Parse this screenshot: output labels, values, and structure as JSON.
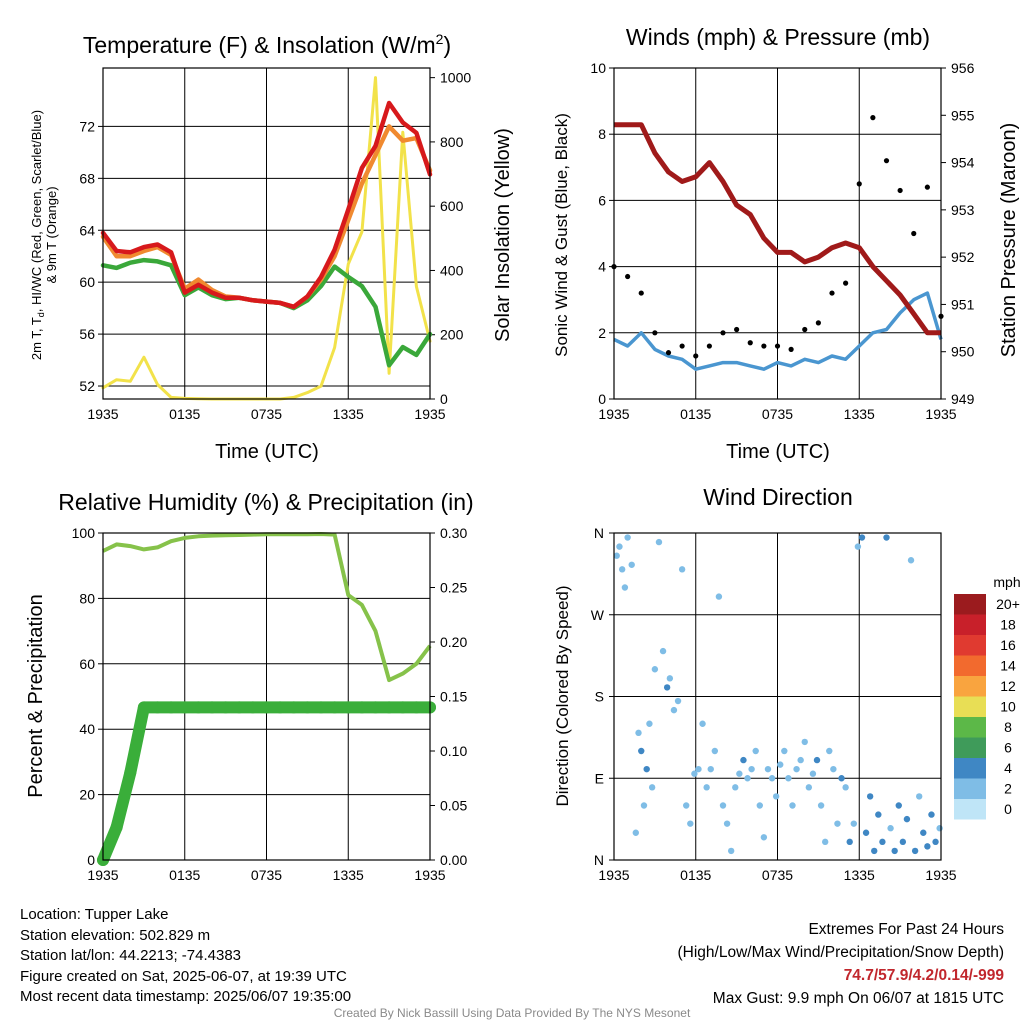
{
  "titles": {
    "temp": "Temperature (F) & Insolation (W/m",
    "temp_sup": "2",
    "temp_close": ")",
    "wind": "Winds (mph) & Pressure (mb)",
    "rh": "Relative Humidity (%) & Precipitation (in)",
    "dir": "Wind Direction"
  },
  "axis_labels": {
    "temp_y_line1": "2m T, T",
    "temp_y_sub": "d",
    "temp_y_line1_rest": ", HI/WC (Red, Green, Scarlet/Blue)",
    "temp_y_line2": "& 9m T (Orange)",
    "temp_y2": "Solar Insolation (Yellow)",
    "wind_y": "Sonic Wind & Gust (Blue, Black)",
    "wind_y2": "Station Pressure (Maroon)",
    "rh_y": "Percent & Precipitation",
    "dir_y": "Direction (Colored By Speed)",
    "x": "Time (UTC)"
  },
  "x_ticks": [
    "1935",
    "0135",
    "0735",
    "1335",
    "1935"
  ],
  "colors": {
    "temp": "#d7191c",
    "nine_m": "#f08a30",
    "dewpoint": "#3aa83a",
    "solar": "#f2e24a",
    "wind": "#4a96d0",
    "gust": "#000000",
    "pressure": "#a01a1a",
    "rh": "#86c24a",
    "precip": "#3aae3a"
  },
  "legend": {
    "title": "mph",
    "labels": [
      "20+",
      "18",
      "16",
      "14",
      "12",
      "10",
      "8",
      "6",
      "4",
      "2",
      "0"
    ],
    "colors": [
      "#9b1b1e",
      "#c8202a",
      "#e03a30",
      "#f26a2e",
      "#f9a43f",
      "#e8de55",
      "#5cb848",
      "#3f9b5a",
      "#3f87c4",
      "#7fbde6",
      "#bfe5f7"
    ]
  },
  "info_left": [
    "Location: Tupper Lake",
    "Station elevation: 502.829 m",
    "Station lat/lon: 44.2213; -74.4383",
    "Figure created on Sat, 2025-06-07, at 19:39 UTC",
    "Most recent data timestamp: 2025/06/07 19:35:00"
  ],
  "info_right": {
    "line1": "Extremes For Past 24 Hours",
    "line2": "(High/Low/Max Wind/Precipitation/Snow Depth)",
    "extremes": "74.7/57.9/4.2/0.14/-999",
    "gust": "Max Gust: 9.9 mph On 06/07 at 1815 UTC"
  },
  "credit": "Created By Nick Bassill Using Data Provided By The NYS Mesonet",
  "chart_data": [
    {
      "id": "temperature",
      "type": "line",
      "title": "Temperature (F) & Insolation (W/m2)",
      "xlabel": "Time (UTC)",
      "ylabel": "2m T, Td, HI/WC (Red, Green, Scarlet/Blue) & 9m T (Orange)",
      "y2label": "Solar Insolation (Yellow)",
      "x_hours": [
        0,
        1,
        2,
        3,
        4,
        5,
        6,
        7,
        8,
        9,
        10,
        11,
        12,
        13,
        14,
        15,
        16,
        17,
        18,
        19,
        20,
        21,
        22,
        23,
        24
      ],
      "ylim": [
        51,
        76.5
      ],
      "yticks": [
        52,
        56,
        60,
        64,
        68,
        72
      ],
      "y2lim": [
        0,
        1030
      ],
      "y2ticks": [
        0,
        200,
        400,
        600,
        800,
        1000
      ],
      "series": [
        {
          "name": "2m T",
          "axis": "left",
          "color": "#d7191c",
          "values": [
            63.8,
            62.4,
            62.3,
            62.7,
            62.9,
            62.3,
            59.2,
            59.8,
            59.2,
            58.8,
            58.8,
            58.6,
            58.5,
            58.4,
            58.1,
            58.9,
            60.4,
            62.5,
            65.6,
            68.8,
            70.5,
            73.8,
            72.3,
            71.5,
            68.3
          ]
        },
        {
          "name": "9m T",
          "axis": "left",
          "color": "#f08a30",
          "values": [
            63.5,
            62.0,
            62.0,
            62.4,
            62.7,
            62.1,
            59.5,
            60.2,
            59.4,
            58.9,
            58.8,
            58.6,
            58.5,
            58.4,
            58.1,
            58.9,
            60.2,
            62.0,
            64.8,
            67.6,
            69.8,
            72.0,
            70.9,
            71.1,
            68.6
          ]
        },
        {
          "name": "Td",
          "axis": "left",
          "color": "#3aa83a",
          "values": [
            61.3,
            61.1,
            61.5,
            61.7,
            61.6,
            61.3,
            59.0,
            59.6,
            59.0,
            58.7,
            58.8,
            58.6,
            58.5,
            58.4,
            58.0,
            58.6,
            59.7,
            61.2,
            60.4,
            59.7,
            58.1,
            53.6,
            55.0,
            54.4,
            56.0
          ]
        },
        {
          "name": "Solar",
          "axis": "right",
          "color": "#f2e24a",
          "values": [
            35,
            60,
            55,
            130,
            45,
            5,
            2,
            1,
            0,
            0,
            0,
            0,
            0,
            0,
            5,
            20,
            40,
            160,
            420,
            520,
            1000,
            80,
            830,
            350,
            180
          ]
        }
      ]
    },
    {
      "id": "winds",
      "type": "line",
      "title": "Winds (mph) & Pressure (mb)",
      "xlabel": "Time (UTC)",
      "ylabel": "Sonic Wind & Gust (Blue, Black)",
      "y2label": "Station Pressure (Maroon)",
      "x_hours": [
        0,
        1,
        2,
        3,
        4,
        5,
        6,
        7,
        8,
        9,
        10,
        11,
        12,
        13,
        14,
        15,
        16,
        17,
        18,
        19,
        20,
        21,
        22,
        23,
        24
      ],
      "ylim": [
        0,
        10
      ],
      "yticks": [
        0,
        2,
        4,
        6,
        8,
        10
      ],
      "y2lim": [
        949,
        956
      ],
      "y2ticks": [
        949,
        950,
        951,
        952,
        953,
        954,
        955,
        956
      ],
      "series": [
        {
          "name": "Sonic Wind",
          "axis": "left",
          "color": "#4a96d0",
          "values": [
            1.8,
            1.6,
            2.0,
            1.5,
            1.3,
            1.2,
            0.9,
            1.0,
            1.1,
            1.1,
            1.0,
            0.9,
            1.1,
            1.0,
            1.2,
            1.1,
            1.3,
            1.2,
            1.6,
            2.0,
            2.1,
            2.6,
            3.0,
            3.2,
            1.8
          ]
        },
        {
          "name": "Gust",
          "axis": "left",
          "color": "#000000",
          "values": [
            4.0,
            3.7,
            3.2,
            2.0,
            1.4,
            1.6,
            1.3,
            1.6,
            2.0,
            2.1,
            1.7,
            1.6,
            1.6,
            1.5,
            2.1,
            2.3,
            3.2,
            3.5,
            6.5,
            8.5,
            7.2,
            6.3,
            5.0,
            6.4,
            2.5
          ]
        },
        {
          "name": "Station Pressure",
          "axis": "right",
          "color": "#a01a1a",
          "values": [
            954.8,
            954.8,
            954.8,
            954.2,
            953.8,
            953.6,
            953.7,
            954.0,
            953.6,
            953.1,
            952.9,
            952.4,
            952.1,
            952.1,
            951.9,
            952.0,
            952.2,
            952.3,
            952.2,
            951.8,
            951.5,
            951.2,
            950.8,
            950.4,
            950.4
          ]
        }
      ]
    },
    {
      "id": "humidity",
      "type": "line",
      "title": "Relative Humidity (%) & Precipitation (in)",
      "ylabel": "Percent & Precipitation",
      "x_hours": [
        0,
        1,
        2,
        3,
        4,
        5,
        6,
        7,
        8,
        9,
        10,
        11,
        12,
        13,
        14,
        15,
        16,
        17,
        18,
        19,
        20,
        21,
        22,
        23,
        24
      ],
      "ylim": [
        0,
        100
      ],
      "yticks": [
        0,
        20,
        40,
        60,
        80,
        100
      ],
      "y2lim": [
        0,
        0.3
      ],
      "y2ticks": [
        0.0,
        0.05,
        0.1,
        0.15,
        0.2,
        0.25,
        0.3
      ],
      "series": [
        {
          "name": "Relative Humidity",
          "axis": "left",
          "color": "#86c24a",
          "values": [
            94.5,
            96.5,
            96.0,
            95.0,
            95.6,
            97.5,
            98.5,
            99.0,
            99.2,
            99.3,
            99.4,
            99.5,
            99.6,
            99.6,
            99.6,
            99.6,
            99.7,
            99.5,
            81.0,
            78.0,
            70.0,
            55.0,
            57.0,
            60.0,
            65.5
          ]
        },
        {
          "name": "Precipitation",
          "axis": "right",
          "color": "#3aae3a",
          "values": [
            0.0,
            0.03,
            0.08,
            0.14,
            0.14,
            0.14,
            0.14,
            0.14,
            0.14,
            0.14,
            0.14,
            0.14,
            0.14,
            0.14,
            0.14,
            0.14,
            0.14,
            0.14,
            0.14,
            0.14,
            0.14,
            0.14,
            0.14,
            0.14,
            0.14
          ]
        }
      ]
    },
    {
      "id": "direction",
      "type": "scatter",
      "title": "Wind Direction",
      "ylabel": "Direction (Colored By Speed)",
      "yticks": [
        "N",
        "E",
        "S",
        "W",
        "N"
      ],
      "ylim_deg": [
        0,
        360
      ],
      "points": [
        [
          0.2,
          335,
          2
        ],
        [
          0.4,
          345,
          2
        ],
        [
          0.6,
          320,
          1
        ],
        [
          0.8,
          300,
          2
        ],
        [
          1.0,
          355,
          1
        ],
        [
          1.3,
          325,
          2
        ],
        [
          1.6,
          30,
          1
        ],
        [
          1.8,
          140,
          2
        ],
        [
          2.0,
          120,
          3
        ],
        [
          2.2,
          60,
          2
        ],
        [
          2.4,
          100,
          3
        ],
        [
          2.6,
          150,
          2
        ],
        [
          2.8,
          80,
          1
        ],
        [
          3.0,
          210,
          1
        ],
        [
          3.3,
          350,
          2
        ],
        [
          3.6,
          230,
          2
        ],
        [
          3.9,
          190,
          3
        ],
        [
          4.1,
          200,
          2
        ],
        [
          4.4,
          165,
          1
        ],
        [
          4.7,
          175,
          1
        ],
        [
          5.0,
          320,
          1
        ],
        [
          5.3,
          60,
          1
        ],
        [
          5.6,
          40,
          2
        ],
        [
          5.9,
          95,
          1
        ],
        [
          6.2,
          100,
          2
        ],
        [
          6.5,
          150,
          1
        ],
        [
          6.8,
          80,
          2
        ],
        [
          7.1,
          100,
          1
        ],
        [
          7.4,
          120,
          2
        ],
        [
          7.7,
          290,
          1
        ],
        [
          8.0,
          60,
          1
        ],
        [
          8.3,
          40,
          2
        ],
        [
          8.6,
          10,
          1
        ],
        [
          8.9,
          80,
          1
        ],
        [
          9.2,
          95,
          2
        ],
        [
          9.5,
          110,
          3
        ],
        [
          9.8,
          90,
          1
        ],
        [
          10.1,
          100,
          2
        ],
        [
          10.4,
          120,
          1
        ],
        [
          10.7,
          60,
          1
        ],
        [
          11.0,
          25,
          2
        ],
        [
          11.3,
          100,
          1
        ],
        [
          11.6,
          90,
          2
        ],
        [
          11.9,
          70,
          2
        ],
        [
          12.2,
          105,
          1
        ],
        [
          12.5,
          120,
          2
        ],
        [
          12.8,
          90,
          1
        ],
        [
          13.1,
          60,
          1
        ],
        [
          13.4,
          100,
          2
        ],
        [
          13.7,
          110,
          1
        ],
        [
          14.0,
          130,
          1
        ],
        [
          14.3,
          80,
          1
        ],
        [
          14.6,
          95,
          2
        ],
        [
          14.9,
          110,
          3
        ],
        [
          15.2,
          60,
          1
        ],
        [
          15.5,
          20,
          2
        ],
        [
          15.8,
          120,
          2
        ],
        [
          16.1,
          100,
          1
        ],
        [
          16.4,
          40,
          2
        ],
        [
          16.7,
          90,
          3
        ],
        [
          17.0,
          80,
          2
        ],
        [
          17.3,
          20,
          3
        ],
        [
          17.6,
          40,
          2
        ],
        [
          17.9,
          345,
          2
        ],
        [
          18.2,
          355,
          3
        ],
        [
          18.5,
          30,
          4
        ],
        [
          18.8,
          70,
          4
        ],
        [
          19.1,
          10,
          3
        ],
        [
          19.4,
          50,
          3
        ],
        [
          19.7,
          20,
          4
        ],
        [
          20.0,
          355,
          3
        ],
        [
          20.3,
          35,
          2
        ],
        [
          20.6,
          10,
          3
        ],
        [
          20.9,
          60,
          3
        ],
        [
          21.2,
          20,
          4
        ],
        [
          21.5,
          45,
          3
        ],
        [
          21.8,
          330,
          2
        ],
        [
          22.1,
          10,
          3
        ],
        [
          22.4,
          70,
          2
        ],
        [
          22.7,
          30,
          3
        ],
        [
          23.0,
          15,
          4
        ],
        [
          23.3,
          50,
          3
        ],
        [
          23.6,
          20,
          3
        ],
        [
          23.9,
          35,
          2
        ]
      ]
    }
  ]
}
